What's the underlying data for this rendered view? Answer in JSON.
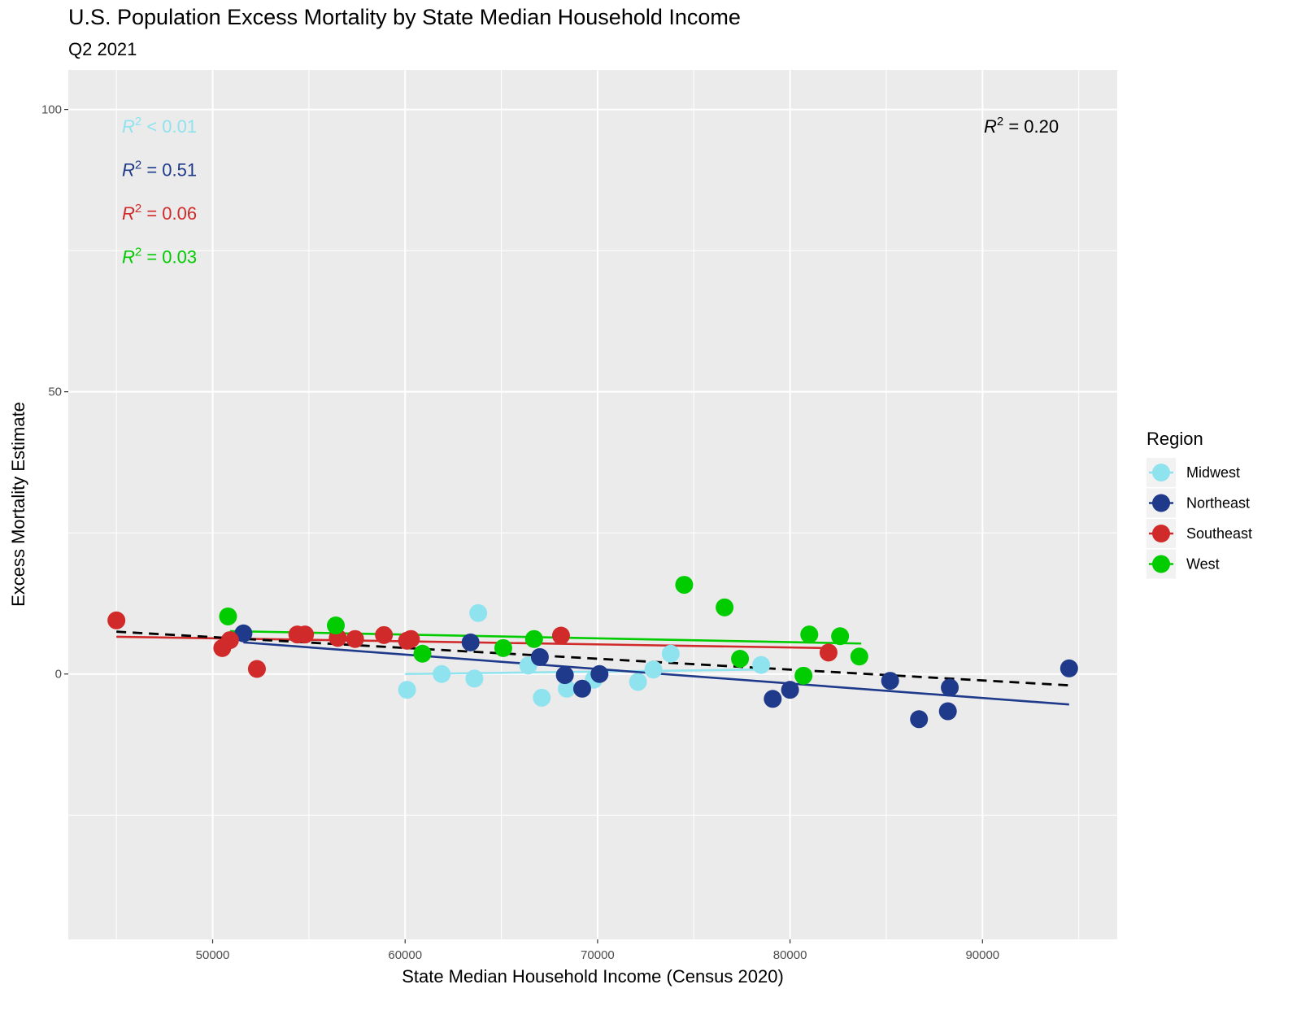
{
  "chart_data": {
    "type": "scatter",
    "title": "U.S. Population Excess Mortality by State Median Household Income",
    "subtitle": "Q2 2021",
    "xlabel": "State Median Household Income (Census 2020)",
    "ylabel": "Excess Mortality Estimate",
    "xlim": [
      42500,
      97000
    ],
    "ylim": [
      -47,
      107
    ],
    "x_ticks": [
      50000,
      60000,
      70000,
      80000,
      90000
    ],
    "y_ticks": [
      0,
      50,
      100
    ],
    "grid": true,
    "legend": {
      "title": "Region",
      "position": "right"
    },
    "overall_fit": {
      "r2_label": " = 0.20",
      "x": [
        45000,
        94500
      ],
      "y": [
        7.5,
        -2
      ]
    },
    "series": [
      {
        "name": "Midwest",
        "color": "#8fe3ef",
        "r2_label": " < 0.01",
        "fit": {
          "x": [
            60000,
            78500
          ],
          "y": [
            0,
            0.8
          ]
        },
        "points": [
          [
            60100,
            -2.8
          ],
          [
            61900,
            0
          ],
          [
            63600,
            -0.8
          ],
          [
            63800,
            10.8
          ],
          [
            66400,
            1.5
          ],
          [
            67100,
            -4.2
          ],
          [
            68400,
            -2.6
          ],
          [
            69800,
            -1.0
          ],
          [
            72100,
            -1.4
          ],
          [
            72900,
            0.8
          ],
          [
            73800,
            3.6
          ],
          [
            78500,
            1.6
          ]
        ]
      },
      {
        "name": "Northeast",
        "color": "#1f3a8a",
        "r2_label": " = 0.51",
        "fit": {
          "x": [
            51600,
            94500
          ],
          "y": [
            5.6,
            -5.4
          ]
        },
        "points": [
          [
            51600,
            7.2
          ],
          [
            63400,
            5.6
          ],
          [
            67000,
            3.0
          ],
          [
            68300,
            -0.2
          ],
          [
            69200,
            -2.6
          ],
          [
            70100,
            0
          ],
          [
            79100,
            -4.4
          ],
          [
            80000,
            -2.8
          ],
          [
            85200,
            -1.2
          ],
          [
            86700,
            -8.0
          ],
          [
            88200,
            -6.6
          ],
          [
            88300,
            -2.4
          ],
          [
            94500,
            1.0
          ]
        ]
      },
      {
        "name": "Southeast",
        "color": "#d12a2a",
        "r2_label": " = 0.06",
        "fit": {
          "x": [
            45000,
            82000
          ],
          "y": [
            6.6,
            4.6
          ]
        },
        "points": [
          [
            45000,
            9.5
          ],
          [
            50500,
            4.6
          ],
          [
            50900,
            6.0
          ],
          [
            52300,
            0.9
          ],
          [
            54400,
            7.0
          ],
          [
            54800,
            7.0
          ],
          [
            56500,
            6.4
          ],
          [
            57400,
            6.2
          ],
          [
            58900,
            6.9
          ],
          [
            60100,
            5.9
          ],
          [
            60300,
            6.2
          ],
          [
            68100,
            6.8
          ],
          [
            82000,
            3.8
          ]
        ]
      },
      {
        "name": "West",
        "color": "#00cc00",
        "r2_label": " = 0.03",
        "fit": {
          "x": [
            50900,
            83700
          ],
          "y": [
            7.6,
            5.4
          ]
        },
        "points": [
          [
            50800,
            10.2
          ],
          [
            56400,
            8.6
          ],
          [
            60900,
            3.6
          ],
          [
            65100,
            4.6
          ],
          [
            66700,
            6.2
          ],
          [
            74500,
            15.8
          ],
          [
            76600,
            11.8
          ],
          [
            77400,
            2.7
          ],
          [
            80700,
            -0.3
          ],
          [
            81000,
            7.0
          ],
          [
            82600,
            6.7
          ],
          [
            83600,
            3.1
          ]
        ]
      }
    ]
  }
}
